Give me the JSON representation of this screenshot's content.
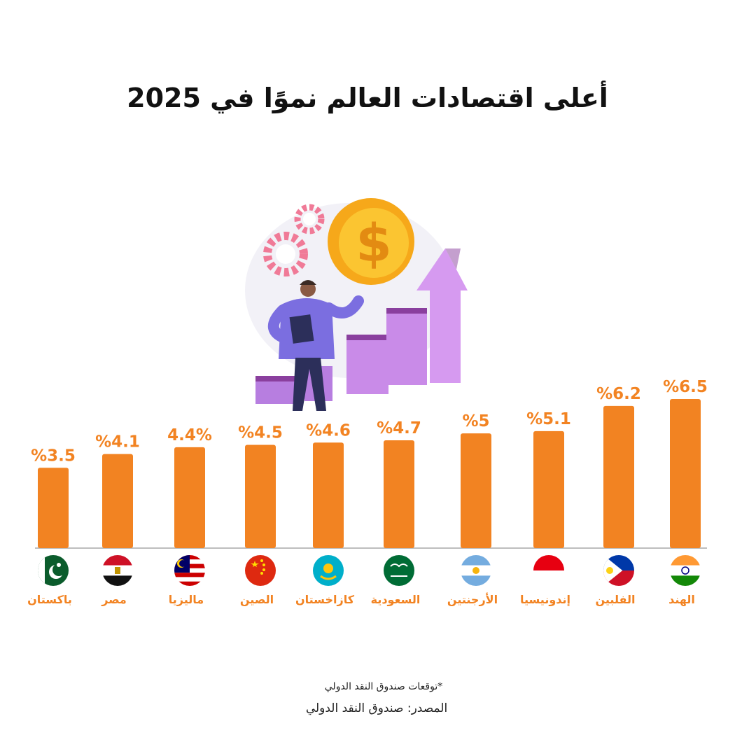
{
  "page": {
    "footnote": "*توقعات صندوق النقد الدولي",
    "source": "المصدر: صندوق النقد الدولي"
  },
  "colors": {
    "bar": "#f28322",
    "label": "#f28322",
    "axis": "#bdbdbd",
    "title": "#111111"
  },
  "chart_data": {
    "type": "bar",
    "title": "أعلى اقتصادات العالم نموًا في 2025",
    "xlabel": "",
    "ylabel": "",
    "unit": "%",
    "ylim": [
      0,
      6.5
    ],
    "grid": false,
    "legend": "none",
    "categories": [
      "باكستان",
      "مصر",
      "ماليزيا",
      "الصين",
      "كازاخستان",
      "السعودية",
      "الأرجنتين",
      "إندونيسيا",
      "الفلبين",
      "الهند"
    ],
    "values": [
      3.5,
      4.1,
      4.4,
      4.5,
      4.6,
      4.7,
      5,
      5.1,
      6.2,
      6.5
    ],
    "value_labels": [
      "%3.5",
      "%4.1",
      "4.4%",
      "%4.5",
      "%4.6",
      "%4.7",
      "%5",
      "%5.1",
      "%6.2",
      "%6.5"
    ],
    "flags": [
      "pakistan-flag-icon",
      "egypt-flag-icon",
      "malaysia-flag-icon",
      "china-flag-icon",
      "kazakhstan-flag-icon",
      "saudi-arabia-flag-icon",
      "argentina-flag-icon",
      "indonesia-flag-icon",
      "philippines-flag-icon",
      "india-flag-icon"
    ]
  }
}
